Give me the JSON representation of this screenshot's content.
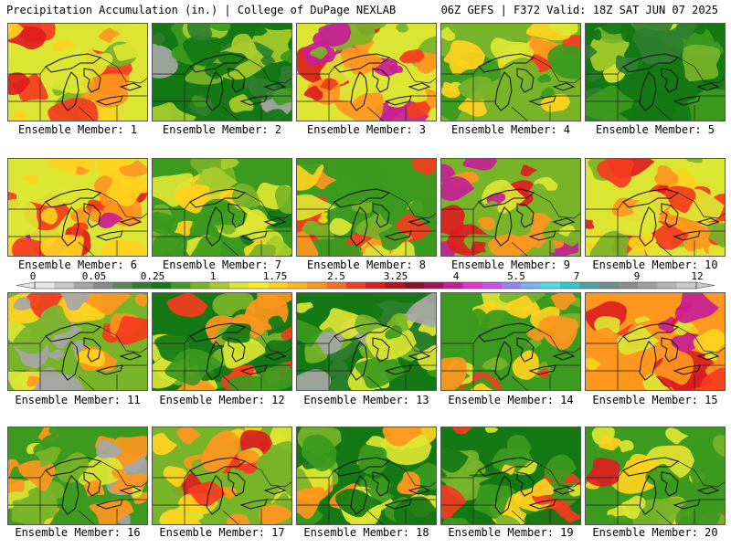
{
  "header": {
    "left": "Precipitation Accumulation (in.) | College of DuPage NEXLAB",
    "right": "06Z GEFS | F372 Valid: 18Z SAT JUN 07 2025"
  },
  "member_label_prefix": "Ensemble Member: ",
  "colorbar": {
    "labels": [
      "0",
      "0.05",
      "0.25",
      "1",
      "1.75",
      "2.5",
      "3.25",
      "4",
      "5.5",
      "7",
      "9",
      "12"
    ],
    "colors": [
      "#e6e6e6",
      "#c8c8c8",
      "#a6a6a6",
      "#8a8a8a",
      "#5f875f",
      "#2f7f2f",
      "#147814",
      "#3c9a1e",
      "#78b428",
      "#a8cc2a",
      "#dce632",
      "#f5f01e",
      "#ffd21e",
      "#ffb41e",
      "#ff961e",
      "#ff6e1e",
      "#f53c1e",
      "#dc1e1e",
      "#b4141e",
      "#8c1428",
      "#a0145a",
      "#c81e96",
      "#e632d2",
      "#c850f0",
      "#9682f0",
      "#78b4f0",
      "#50dcdc",
      "#32c8c8",
      "#50a0a0",
      "#6e8c8c",
      "#8c8c8c",
      "#a0a0a0",
      "#b4b4b4",
      "#c8c8c8"
    ]
  },
  "members": [
    {
      "number": 1,
      "palette": [
        "#dce632",
        "#ffd21e",
        "#ff961e",
        "#f53c1e",
        "#dc1e1e",
        "#78b428"
      ]
    },
    {
      "number": 2,
      "palette": [
        "#147814",
        "#2f7f2f",
        "#3c9a1e",
        "#78b428",
        "#a8cc2a",
        "#a6a6a6"
      ]
    },
    {
      "number": 3,
      "palette": [
        "#dce632",
        "#ff961e",
        "#f53c1e",
        "#dc1e1e",
        "#c81e96",
        "#78b428"
      ]
    },
    {
      "number": 4,
      "palette": [
        "#78b428",
        "#dce632",
        "#ffd21e",
        "#ff961e",
        "#f53c1e",
        "#3c9a1e"
      ]
    },
    {
      "number": 5,
      "palette": [
        "#147814",
        "#2f7f2f",
        "#3c9a1e",
        "#78b428",
        "#dce632",
        "#a8cc2a"
      ]
    },
    {
      "number": 6,
      "palette": [
        "#dce632",
        "#ff961e",
        "#f53c1e",
        "#dc1e1e",
        "#c81e96",
        "#ffd21e"
      ]
    },
    {
      "number": 7,
      "palette": [
        "#3c9a1e",
        "#78b428",
        "#a8cc2a",
        "#dce632",
        "#ffd21e",
        "#147814"
      ]
    },
    {
      "number": 8,
      "palette": [
        "#3c9a1e",
        "#78b428",
        "#dce632",
        "#ffd21e",
        "#ff961e",
        "#f53c1e"
      ]
    },
    {
      "number": 9,
      "palette": [
        "#78b428",
        "#dce632",
        "#ff961e",
        "#f53c1e",
        "#dc1e1e",
        "#c81e96"
      ]
    },
    {
      "number": 10,
      "palette": [
        "#dce632",
        "#ffd21e",
        "#ff961e",
        "#f53c1e",
        "#78b428",
        "#dc1e1e"
      ]
    },
    {
      "number": 11,
      "palette": [
        "#78b428",
        "#dce632",
        "#ffd21e",
        "#ff961e",
        "#f53c1e",
        "#a6a6a6"
      ]
    },
    {
      "number": 12,
      "palette": [
        "#147814",
        "#3c9a1e",
        "#78b428",
        "#dce632",
        "#ff961e",
        "#f53c1e"
      ]
    },
    {
      "number": 13,
      "palette": [
        "#147814",
        "#2f7f2f",
        "#3c9a1e",
        "#78b428",
        "#dce632",
        "#a6a6a6"
      ]
    },
    {
      "number": 14,
      "palette": [
        "#3c9a1e",
        "#78b428",
        "#dce632",
        "#ffd21e",
        "#ff961e",
        "#f53c1e"
      ]
    },
    {
      "number": 15,
      "palette": [
        "#ff961e",
        "#f53c1e",
        "#dc1e1e",
        "#c81e96",
        "#dce632",
        "#ffd21e"
      ]
    },
    {
      "number": 16,
      "palette": [
        "#3c9a1e",
        "#78b428",
        "#dce632",
        "#ffd21e",
        "#ff961e",
        "#a6a6a6"
      ]
    },
    {
      "number": 17,
      "palette": [
        "#78b428",
        "#dce632",
        "#ffd21e",
        "#ff961e",
        "#f53c1e",
        "#dc1e1e"
      ]
    },
    {
      "number": 18,
      "palette": [
        "#147814",
        "#3c9a1e",
        "#78b428",
        "#dce632",
        "#ffd21e",
        "#ff961e"
      ]
    },
    {
      "number": 19,
      "palette": [
        "#147814",
        "#3c9a1e",
        "#78b428",
        "#dce632",
        "#ffd21e",
        "#f53c1e"
      ]
    },
    {
      "number": 20,
      "palette": [
        "#3c9a1e",
        "#78b428",
        "#dce632",
        "#ffd21e",
        "#f53c1e",
        "#dc1e1e"
      ]
    }
  ]
}
